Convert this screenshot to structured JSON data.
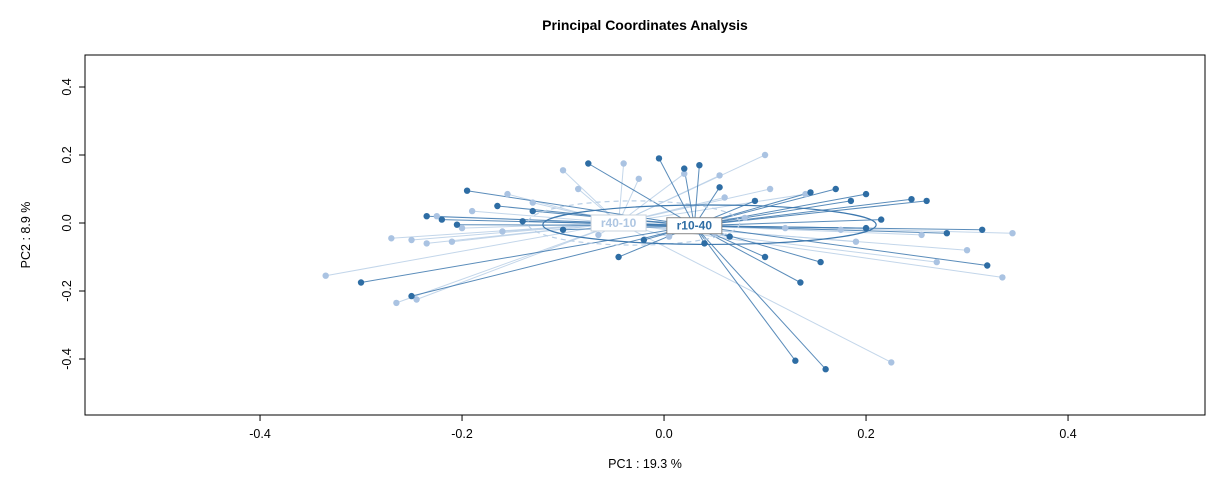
{
  "chart_data": {
    "type": "scatter",
    "title": "Principal Coordinates Analysis",
    "xlabel": "PC1 :  19.3 %",
    "ylabel": "PC2 :  8.9 %",
    "xlim": [
      -0.5733,
      0.5356
    ],
    "ylim": [
      -0.5647,
      0.4941
    ],
    "grid": false,
    "legend": "none",
    "xticks": [
      {
        "v": -0.4,
        "label": "-0.4"
      },
      {
        "v": -0.2,
        "label": "-0.2"
      },
      {
        "v": 0.0,
        "label": "0.0"
      },
      {
        "v": 0.2,
        "label": "0.2"
      },
      {
        "v": 0.4,
        "label": "0.4"
      }
    ],
    "yticks": [
      {
        "v": -0.4,
        "label": "-0.4"
      },
      {
        "v": -0.2,
        "label": "-0.2"
      },
      {
        "v": 0.0,
        "label": "0.0"
      },
      {
        "v": 0.2,
        "label": "0.2"
      },
      {
        "v": 0.4,
        "label": "0.4"
      }
    ],
    "groups": [
      {
        "name": "r40-10",
        "color": "#aac3e2",
        "line_color": "#b9cfe6",
        "label_color": "#aec6e2",
        "box_border": "#c9d3dd",
        "centroid": [
          -0.045,
          0.0
        ],
        "ellipse": {
          "cx": -0.03,
          "cy": 0.0,
          "rx": 0.105,
          "ry": 0.065,
          "dashed": true
        },
        "points": [
          [
            -0.335,
            -0.155
          ],
          [
            -0.265,
            -0.235
          ],
          [
            -0.27,
            -0.045
          ],
          [
            -0.25,
            -0.05
          ],
          [
            -0.235,
            -0.06
          ],
          [
            -0.225,
            0.02
          ],
          [
            -0.21,
            -0.055
          ],
          [
            -0.19,
            0.035
          ],
          [
            -0.155,
            0.085
          ],
          [
            -0.13,
            0.06
          ],
          [
            -0.1,
            0.155
          ],
          [
            -0.085,
            0.1
          ],
          [
            -0.04,
            0.175
          ],
          [
            -0.025,
            0.13
          ],
          [
            0.02,
            0.145
          ],
          [
            0.055,
            0.14
          ],
          [
            0.1,
            0.2
          ],
          [
            0.105,
            0.1
          ],
          [
            0.14,
            0.085
          ],
          [
            0.06,
            0.075
          ],
          [
            -0.065,
            -0.035
          ],
          [
            0.005,
            -0.04
          ],
          [
            0.05,
            -0.03
          ],
          [
            0.12,
            -0.015
          ],
          [
            0.175,
            -0.02
          ],
          [
            0.19,
            -0.055
          ],
          [
            0.255,
            -0.035
          ],
          [
            0.27,
            -0.115
          ],
          [
            0.3,
            -0.08
          ],
          [
            0.335,
            -0.16
          ],
          [
            0.345,
            -0.03
          ],
          [
            0.225,
            -0.41
          ],
          [
            -0.245,
            -0.225
          ],
          [
            -0.2,
            -0.015
          ],
          [
            -0.16,
            -0.025
          ],
          [
            0.08,
            0.015
          ]
        ]
      },
      {
        "name": "r10-40",
        "color": "#2e6da4",
        "line_color": "#3d78ae",
        "label_color": "#2e6da4",
        "box_border": "#888888",
        "centroid": [
          0.03,
          -0.008
        ],
        "ellipse": {
          "cx": 0.045,
          "cy": -0.005,
          "rx": 0.165,
          "ry": 0.058,
          "dashed": false
        },
        "points": [
          [
            -0.3,
            -0.175
          ],
          [
            -0.25,
            -0.215
          ],
          [
            -0.235,
            0.02
          ],
          [
            -0.22,
            0.01
          ],
          [
            -0.205,
            -0.005
          ],
          [
            -0.195,
            0.095
          ],
          [
            -0.165,
            0.05
          ],
          [
            -0.13,
            0.035
          ],
          [
            -0.075,
            0.175
          ],
          [
            -0.005,
            0.19
          ],
          [
            0.02,
            0.16
          ],
          [
            0.035,
            0.17
          ],
          [
            0.055,
            0.105
          ],
          [
            0.09,
            0.065
          ],
          [
            0.145,
            0.09
          ],
          [
            0.17,
            0.1
          ],
          [
            0.185,
            0.065
          ],
          [
            0.2,
            0.085
          ],
          [
            0.245,
            0.07
          ],
          [
            0.215,
            0.01
          ],
          [
            0.2,
            -0.015
          ],
          [
            0.28,
            -0.03
          ],
          [
            0.315,
            -0.02
          ],
          [
            0.32,
            -0.125
          ],
          [
            0.135,
            -0.175
          ],
          [
            0.155,
            -0.115
          ],
          [
            0.1,
            -0.1
          ],
          [
            0.13,
            -0.405
          ],
          [
            0.16,
            -0.43
          ],
          [
            -0.045,
            -0.1
          ],
          [
            -0.02,
            -0.05
          ],
          [
            0.04,
            -0.06
          ],
          [
            0.065,
            -0.04
          ],
          [
            -0.1,
            -0.02
          ],
          [
            -0.14,
            0.005
          ],
          [
            0.26,
            0.065
          ]
        ]
      }
    ]
  }
}
